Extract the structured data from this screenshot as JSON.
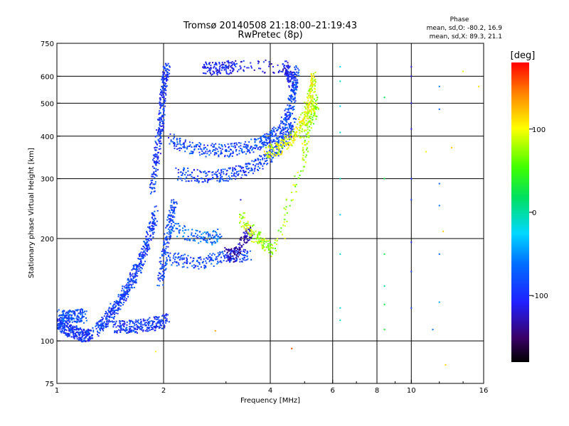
{
  "chart_data": {
    "type": "scatter",
    "title": "Tromsø 20140508 21:18:00–21:19:43",
    "subtitle": "RwPretec (8p)",
    "xlabel": "Frequency [MHz]",
    "ylabel": "Stationary phase Virtual Height [km]",
    "x_scale": "log",
    "y_scale": "log",
    "xlim": [
      1,
      16
    ],
    "ylim": [
      75,
      750
    ],
    "x_ticks": [
      1,
      2,
      4,
      6,
      8,
      10,
      16
    ],
    "x_tick_labels": [
      "1",
      "2",
      "4",
      "6",
      "8",
      "10",
      "16"
    ],
    "y_ticks": [
      75,
      100,
      200,
      300,
      400,
      500,
      600,
      750
    ],
    "y_tick_labels": [
      "75",
      "100",
      "200",
      "300",
      "400",
      "500",
      "600",
      "750"
    ],
    "grid": true,
    "info": {
      "heading": "Phase",
      "line1": "mean, sd,O: -80.2, 16.9",
      "line2": "mean, sd,X: 89.3, 21.1"
    },
    "colorbar": {
      "unit_label": "[deg]",
      "range": [
        -180,
        180
      ],
      "tick_values": [
        100,
        0,
        -100
      ],
      "tick_labels": [
        "100",
        "0",
        "-100"
      ],
      "colormap": "rainbow (black-purple-blue-cyan-green-yellow-red)"
    },
    "traces": [
      {
        "name_id": "low_trace",
        "phase": -95,
        "points": [
          [
            1.0,
            113
          ],
          [
            1.03,
            111
          ],
          [
            1.06,
            109
          ],
          [
            1.1,
            107
          ],
          [
            1.14,
            105
          ],
          [
            1.18,
            104
          ],
          [
            1.22,
            104
          ],
          [
            1.26,
            105
          ]
        ]
      },
      {
        "name_id": "low_trace_upper",
        "phase": -80,
        "points": [
          [
            1.02,
            118
          ],
          [
            1.06,
            117
          ],
          [
            1.1,
            118
          ],
          [
            1.15,
            119
          ],
          [
            1.2,
            118
          ]
        ]
      },
      {
        "name_id": "E_rise",
        "phase": -90,
        "points": [
          [
            1.3,
            108
          ],
          [
            1.35,
            112
          ],
          [
            1.4,
            118
          ],
          [
            1.45,
            124
          ],
          [
            1.5,
            130
          ],
          [
            1.55,
            137
          ],
          [
            1.6,
            145
          ],
          [
            1.65,
            155
          ],
          [
            1.7,
            165
          ],
          [
            1.75,
            178
          ],
          [
            1.8,
            195
          ],
          [
            1.85,
            215
          ],
          [
            1.9,
            240
          ]
        ]
      },
      {
        "name_id": "E_flat",
        "phase": -95,
        "points": [
          [
            1.45,
            110
          ],
          [
            1.55,
            110
          ],
          [
            1.65,
            110
          ],
          [
            1.75,
            111
          ],
          [
            1.85,
            112
          ],
          [
            1.95,
            113
          ],
          [
            2.05,
            115
          ]
        ]
      },
      {
        "name_id": "F_cusp_column",
        "phase": -95,
        "points": [
          [
            1.85,
            280
          ],
          [
            1.9,
            330
          ],
          [
            1.93,
            380
          ],
          [
            1.96,
            430
          ],
          [
            1.98,
            480
          ],
          [
            2.0,
            540
          ],
          [
            2.02,
            600
          ],
          [
            2.05,
            640
          ]
        ]
      },
      {
        "name_id": "F_column_lower",
        "phase": -90,
        "points": [
          [
            1.95,
            150
          ],
          [
            2.0,
            170
          ],
          [
            2.05,
            200
          ],
          [
            2.1,
            230
          ],
          [
            2.15,
            260
          ]
        ]
      },
      {
        "name_id": "F1_O_trace",
        "phase": -85,
        "points": [
          [
            2.1,
            390
          ],
          [
            2.3,
            372
          ],
          [
            2.6,
            365
          ],
          [
            2.9,
            362
          ],
          [
            3.2,
            365
          ],
          [
            3.5,
            372
          ],
          [
            3.8,
            382
          ],
          [
            4.0,
            392
          ],
          [
            4.2,
            410
          ],
          [
            4.4,
            440
          ],
          [
            4.55,
            480
          ],
          [
            4.65,
            530
          ],
          [
            4.7,
            580
          ],
          [
            4.75,
            625
          ]
        ]
      },
      {
        "name_id": "F_lower_arc",
        "phase": -90,
        "points": [
          [
            2.2,
            310
          ],
          [
            2.5,
            305
          ],
          [
            2.8,
            305
          ],
          [
            3.1,
            310
          ],
          [
            3.4,
            318
          ],
          [
            3.7,
            330
          ],
          [
            4.0,
            348
          ],
          [
            4.3,
            375
          ],
          [
            4.5,
            405
          ],
          [
            4.65,
            440
          ]
        ]
      },
      {
        "name_id": "F_X_trace",
        "phase": 95,
        "points": [
          [
            3.9,
            360
          ],
          [
            4.2,
            368
          ],
          [
            4.5,
            385
          ],
          [
            4.8,
            410
          ],
          [
            5.0,
            450
          ],
          [
            5.15,
            500
          ],
          [
            5.25,
            550
          ],
          [
            5.3,
            600
          ]
        ]
      },
      {
        "name_id": "F_top_blobs",
        "phase": -110,
        "points": [
          [
            2.6,
            640
          ],
          [
            2.8,
            630
          ],
          [
            3.0,
            635
          ],
          [
            3.2,
            645
          ],
          [
            4.4,
            640
          ],
          [
            4.5,
            610
          ],
          [
            4.6,
            580
          ]
        ]
      },
      {
        "name_id": "F_mid_trace",
        "phase": -85,
        "points": [
          [
            2.05,
            175
          ],
          [
            2.3,
            172
          ],
          [
            2.6,
            170
          ],
          [
            2.9,
            175
          ],
          [
            3.2,
            178
          ],
          [
            3.5,
            180
          ]
        ]
      },
      {
        "name_id": "F_mid_trace2",
        "phase": -70,
        "points": [
          [
            2.1,
            215
          ],
          [
            2.4,
            205
          ],
          [
            2.7,
            200
          ],
          [
            2.9,
            205
          ]
        ]
      },
      {
        "name_id": "scattered_low_phase",
        "phase": -130,
        "points": [
          [
            3.0,
            180
          ],
          [
            3.2,
            178
          ],
          [
            3.4,
            200
          ],
          [
            3.5,
            210
          ]
        ]
      },
      {
        "name_id": "scattered_positive",
        "phase": 80,
        "points": [
          [
            3.3,
            230
          ],
          [
            3.6,
            205
          ],
          [
            3.8,
            195
          ],
          [
            4.1,
            185
          ],
          [
            5.0,
            350
          ],
          [
            5.1,
            430
          ],
          [
            5.3,
            470
          ],
          [
            5.4,
            510
          ]
        ]
      },
      {
        "name_id": "vertical_6p4",
        "phase": -20,
        "points": [
          [
            6.3,
            640
          ],
          [
            6.3,
            580
          ],
          [
            6.3,
            490
          ],
          [
            6.3,
            410
          ],
          [
            6.3,
            300
          ],
          [
            6.3,
            235
          ],
          [
            6.3,
            180
          ],
          [
            6.3,
            125
          ],
          [
            6.3,
            115
          ]
        ]
      },
      {
        "name_id": "vertical_10",
        "phase": -100,
        "points": [
          [
            10.0,
            640
          ],
          [
            10.0,
            600
          ],
          [
            10.0,
            500
          ],
          [
            10.0,
            420
          ],
          [
            10.0,
            300
          ],
          [
            10.0,
            260
          ],
          [
            10.0,
            195
          ],
          [
            10.0,
            160
          ],
          [
            10.0,
            125
          ]
        ]
      },
      {
        "name_id": "vertical_8p4",
        "phase": 20,
        "points": [
          [
            8.4,
            520
          ],
          [
            8.4,
            300
          ],
          [
            8.4,
            180
          ],
          [
            8.4,
            145
          ],
          [
            8.4,
            128
          ],
          [
            8.4,
            108
          ]
        ]
      },
      {
        "name_id": "vertical_12",
        "phase": -60,
        "points": [
          [
            12.0,
            560
          ],
          [
            12.0,
            480
          ],
          [
            12.0,
            290
          ],
          [
            12.0,
            250
          ],
          [
            12.0,
            180
          ],
          [
            12.0,
            130
          ],
          [
            11.5,
            108
          ]
        ]
      },
      {
        "name_id": "sparse_right",
        "phase": 100,
        "points": [
          [
            14.0,
            620
          ],
          [
            15.5,
            560
          ],
          [
            13.0,
            370
          ],
          [
            11.0,
            360
          ],
          [
            12.3,
            210
          ],
          [
            12.5,
            85
          ]
        ]
      }
    ],
    "isolated_points": [
      {
        "x": 1.9,
        "y": 93,
        "phase": 100
      },
      {
        "x": 2.8,
        "y": 107,
        "phase": 130
      },
      {
        "x": 4.6,
        "y": 95,
        "phase": 160
      },
      {
        "x": 3.3,
        "y": 260,
        "phase": -120
      },
      {
        "x": 4.4,
        "y": 200,
        "phase": 110
      }
    ]
  }
}
